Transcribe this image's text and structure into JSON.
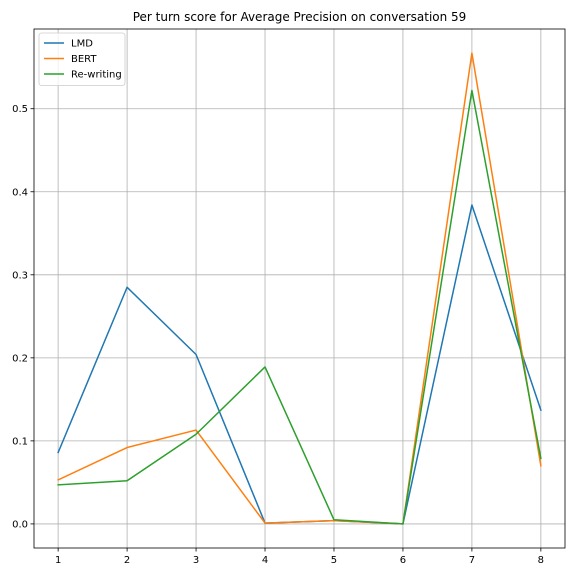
{
  "chart_data": {
    "type": "line",
    "title": "Per turn score for Average Precision on conversation 59",
    "xlabel": "",
    "ylabel": "",
    "x": [
      1,
      2,
      3,
      4,
      5,
      6,
      7,
      8
    ],
    "xlim": [
      0.65,
      8.35
    ],
    "ylim": [
      -0.029,
      0.596
    ],
    "xticks": [
      "1",
      "2",
      "3",
      "4",
      "5",
      "6",
      "7",
      "8"
    ],
    "yticks": [
      0.0,
      0.1,
      0.2,
      0.3,
      0.4,
      0.5
    ],
    "ytick_labels": [
      "0.0",
      "0.1",
      "0.2",
      "0.3",
      "0.4",
      "0.5"
    ],
    "grid": true,
    "legend_position": "upper-left",
    "series": [
      {
        "name": "LMD",
        "color": "#1f77b4",
        "values": [
          0.086,
          0.285,
          0.204,
          0.001,
          0.004,
          0.0,
          0.384,
          0.137
        ]
      },
      {
        "name": "BERT",
        "color": "#ff7f0e",
        "values": [
          0.053,
          0.092,
          0.113,
          0.001,
          0.004,
          0.0,
          0.567,
          0.07
        ]
      },
      {
        "name": "Re-writing",
        "color": "#2ca02c",
        "values": [
          0.047,
          0.052,
          0.108,
          0.189,
          0.005,
          0.0,
          0.522,
          0.079
        ]
      }
    ]
  }
}
